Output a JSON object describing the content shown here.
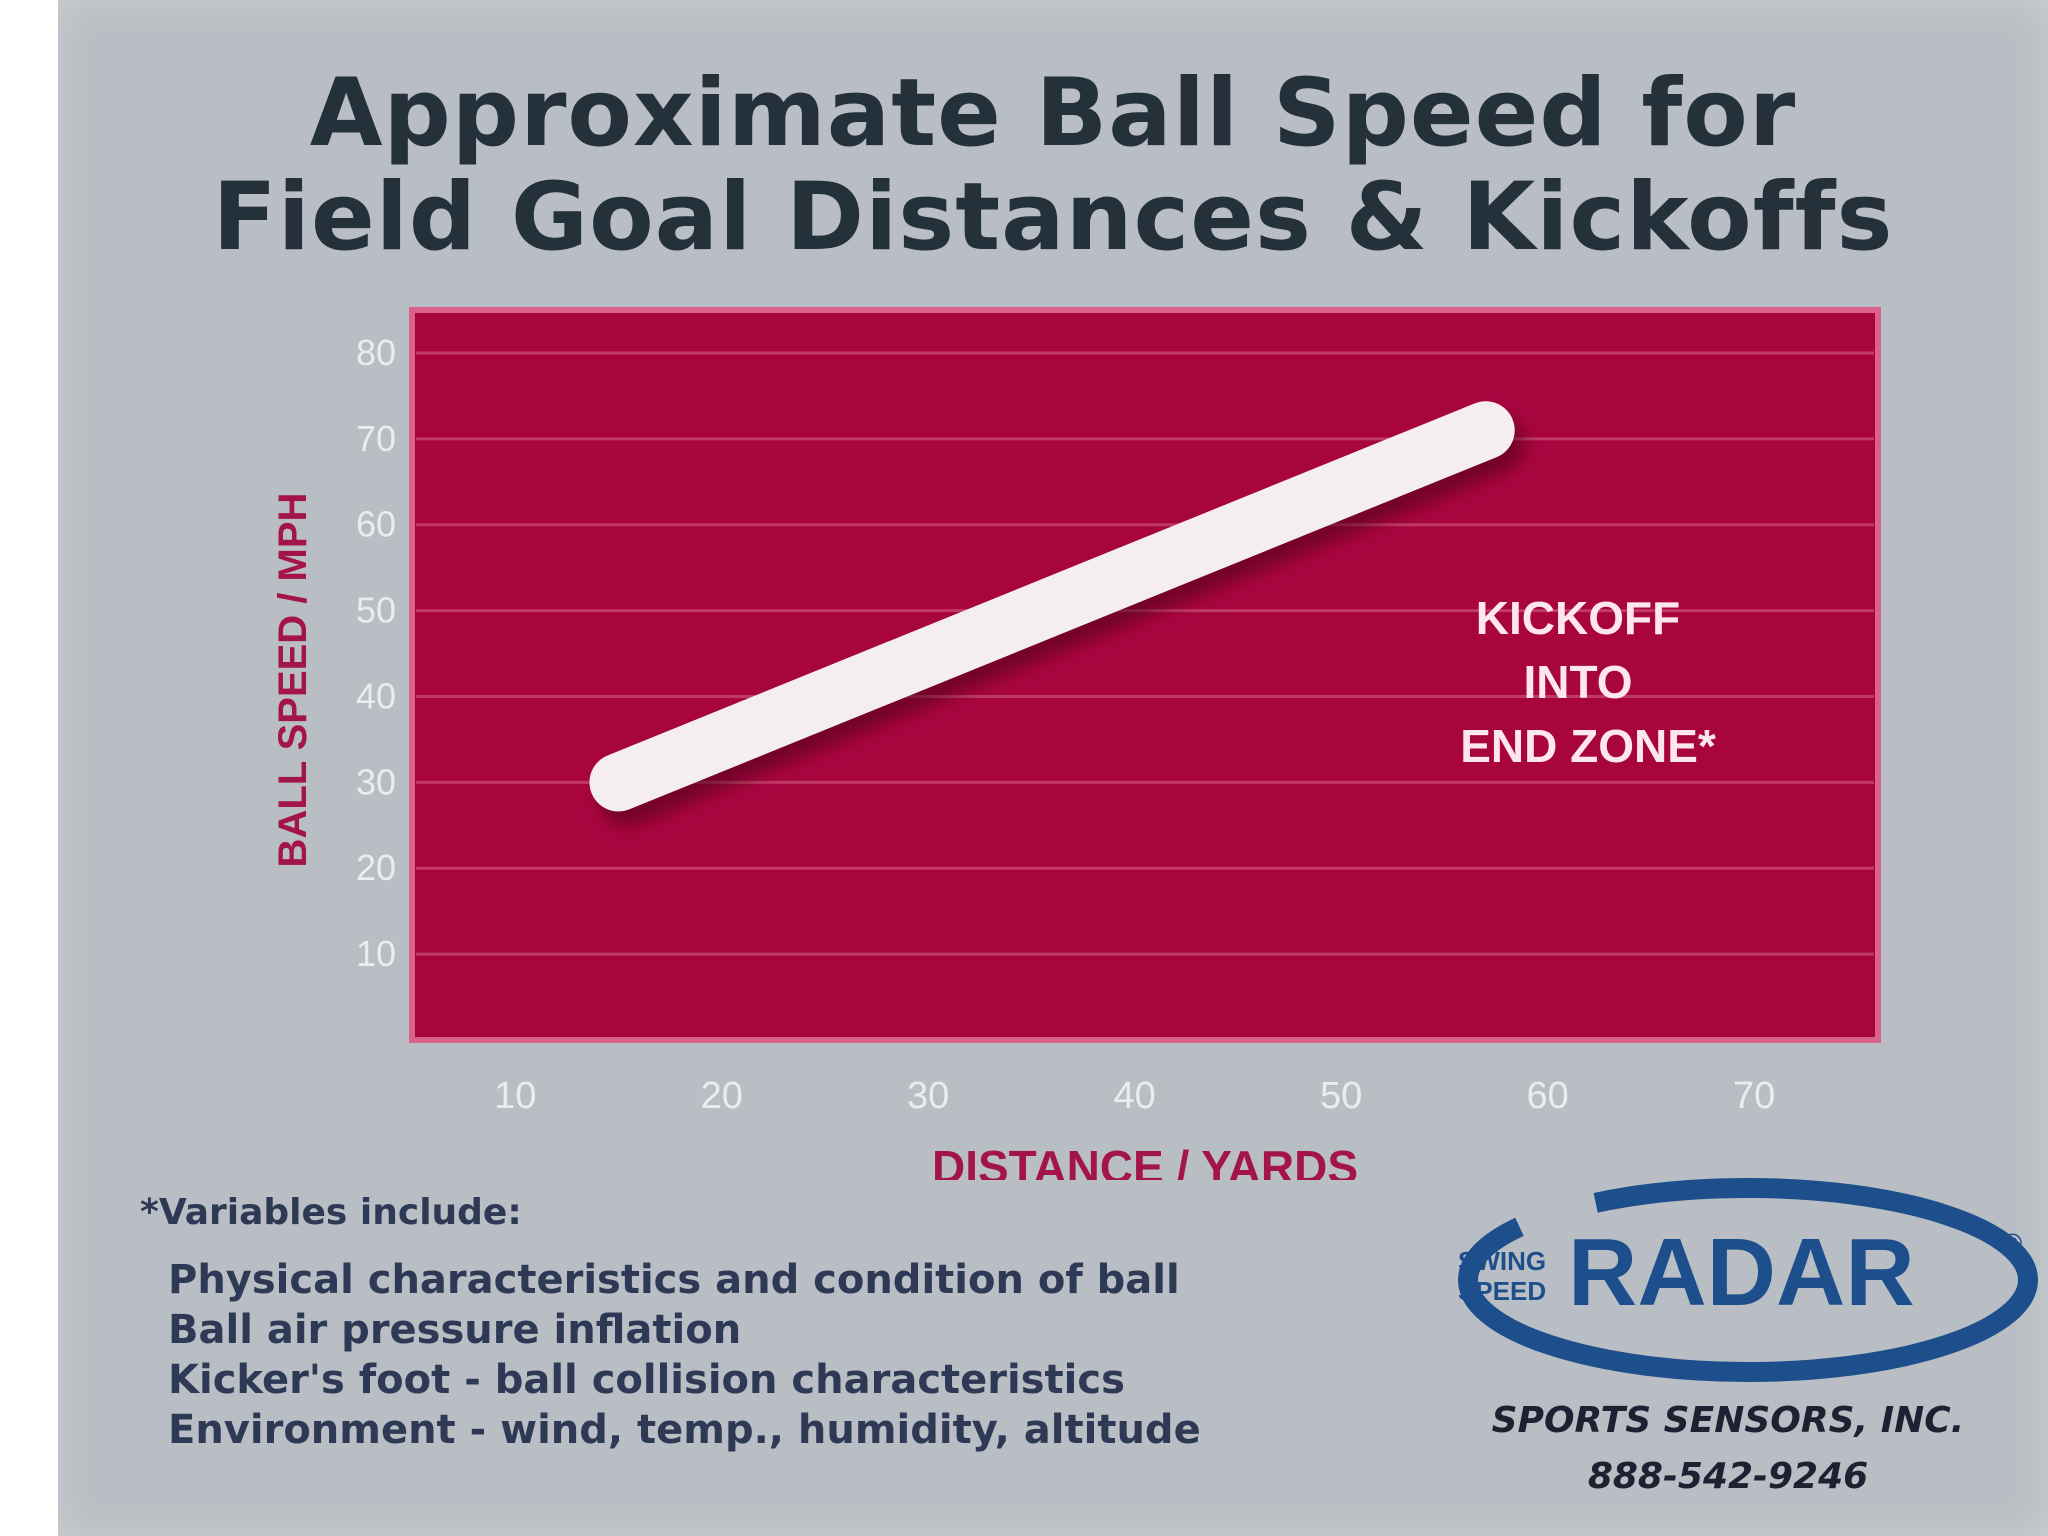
{
  "chart_data": {
    "type": "line",
    "title_line1": "Approximate Ball Speed for",
    "title_line2": "Field Goal Distances & Kickoffs",
    "xlabel": "DISTANCE / YARDS",
    "ylabel": "BALL SPEED / MPH",
    "xlim": [
      5,
      76
    ],
    "ylim": [
      0,
      85
    ],
    "xticks": [
      10,
      20,
      30,
      40,
      50,
      60,
      70
    ],
    "yticks": [
      10,
      20,
      30,
      40,
      50,
      60,
      70,
      80
    ],
    "grid": true,
    "series": [
      {
        "x": [
          15,
          57
        ],
        "y": [
          30,
          71
        ]
      }
    ],
    "annotation": [
      "KICKOFF",
      "INTO",
      "END ZONE*"
    ],
    "colors": {
      "plot_bg": "#a8053f",
      "line": "#f4eef0",
      "labels": "#a3154a",
      "annotation": "#fde6ee"
    }
  },
  "footnote": {
    "heading": "*Variables include:",
    "items": [
      "Physical characteristics and condition of ball",
      "Ball air pressure inflation",
      "Kicker's foot - ball collision characteristics",
      "Environment - wind, temp., humidity, altitude"
    ]
  },
  "logo": {
    "small_top": "SWING",
    "small_bottom": "SPEED",
    "brand": "RADAR",
    "mark": "®",
    "color": "#1c4f8c"
  },
  "company": "SPORTS SENSORS, INC.",
  "phone": "888-542-9246"
}
